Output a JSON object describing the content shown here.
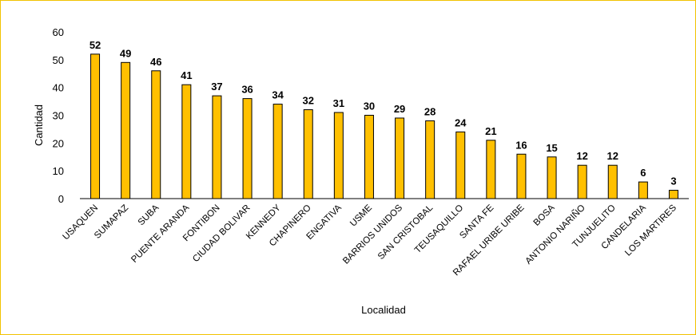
{
  "chart_data": {
    "type": "bar",
    "categories": [
      "USAQUEN",
      "SUMAPAZ",
      "SUBA",
      "PUENTE ARANDA",
      "FONTIBON",
      "CIUDAD BOLIVAR",
      "KENNEDY",
      "CHAPINERO",
      "ENGATIVA",
      "USME",
      "BARRIOS UNIDOS",
      "SAN CRISTOBAL",
      "TEUSAQUILLO",
      "SANTA FE",
      "RAFAEL URIBE URIBE",
      "BOSA",
      "ANTONIO NARIÑO",
      "TUNJUELITO",
      "CANDELARIA",
      "LOS MARTIRES"
    ],
    "values": [
      52,
      49,
      46,
      41,
      37,
      36,
      34,
      32,
      31,
      30,
      29,
      28,
      24,
      21,
      16,
      15,
      12,
      12,
      6,
      3
    ],
    "title": "",
    "xlabel": "Localidad",
    "ylabel": "Cantidad",
    "ylim": [
      0,
      60
    ],
    "yticks": [
      0,
      10,
      20,
      30,
      40,
      50,
      60
    ],
    "grid": false,
    "legend": "none",
    "bar_color": "#FFC000",
    "bar_edge_color": "#000000"
  }
}
